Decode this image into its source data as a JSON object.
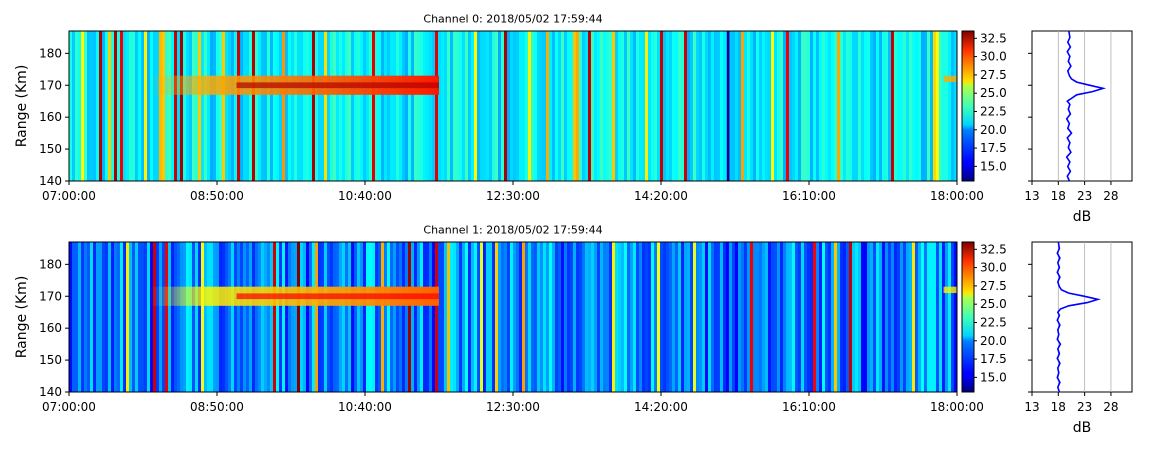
{
  "chart_data": [
    {
      "type": "heatmap",
      "title": "Channel 0: 2018/05/02 17:59:44",
      "ylabel": "Range (Km)",
      "xlabel": "",
      "x_ticks": [
        "07:00:00",
        "08:50:00",
        "10:40:00",
        "12:30:00",
        "14:20:00",
        "16:10:00",
        "18:00:00"
      ],
      "xlim": [
        "07:00:00",
        "18:00:00"
      ],
      "y_ticks": [
        140,
        150,
        160,
        170,
        180
      ],
      "ylim": [
        140,
        187
      ],
      "colorbar_ticks": [
        "15.0",
        "17.5",
        "20.0",
        "22.5",
        "25.0",
        "27.5",
        "30.0",
        "32.5"
      ],
      "colorbar_range": [
        13,
        33.5
      ],
      "colormap": "jet",
      "background_level": 20.5,
      "echo_layer": {
        "range_km": [
          167,
          173
        ],
        "time_start": "08:00:00",
        "time_end": "11:35:00",
        "level_db": 27.5
      },
      "dark_streak_time": "15:09:00",
      "profile": {
        "xlabel": "dB",
        "x_ticks": [
          13,
          18,
          23,
          28
        ],
        "xlim": [
          13,
          32
        ],
        "ylim": [
          140,
          187
        ],
        "line_color": "#0000ff",
        "points": [
          [
            20.1,
            140
          ],
          [
            19.7,
            141.5
          ],
          [
            20.3,
            143
          ],
          [
            19.8,
            144.5
          ],
          [
            20.2,
            146
          ],
          [
            19.6,
            147.5
          ],
          [
            20.4,
            149
          ],
          [
            19.9,
            150.5
          ],
          [
            20.2,
            152
          ],
          [
            19.7,
            153.5
          ],
          [
            20.5,
            155
          ],
          [
            19.8,
            156.5
          ],
          [
            20.1,
            158
          ],
          [
            19.6,
            159.5
          ],
          [
            20.3,
            161
          ],
          [
            19.9,
            162.5
          ],
          [
            20.2,
            164
          ],
          [
            19.7,
            165
          ],
          [
            20.6,
            166
          ],
          [
            21.5,
            167
          ],
          [
            24.5,
            168
          ],
          [
            26.5,
            169
          ],
          [
            24,
            170
          ],
          [
            21.5,
            171
          ],
          [
            20.5,
            172
          ],
          [
            20.1,
            173
          ],
          [
            19.8,
            174.5
          ],
          [
            20.4,
            176
          ],
          [
            19.9,
            177.5
          ],
          [
            20.2,
            179
          ],
          [
            19.7,
            180.5
          ],
          [
            20.3,
            182
          ],
          [
            19.8,
            183.5
          ],
          [
            20.2,
            185
          ],
          [
            20,
            187
          ]
        ]
      }
    },
    {
      "type": "heatmap",
      "title": "Channel 1: 2018/05/02 17:59:44",
      "ylabel": "Range (Km)",
      "xlabel": "",
      "x_ticks": [
        "07:00:00",
        "08:50:00",
        "10:40:00",
        "12:30:00",
        "14:20:00",
        "16:10:00",
        "18:00:00"
      ],
      "xlim": [
        "07:00:00",
        "18:00:00"
      ],
      "y_ticks": [
        140,
        150,
        160,
        170,
        180
      ],
      "ylim": [
        140,
        187
      ],
      "colorbar_ticks": [
        "15.0",
        "17.5",
        "20.0",
        "22.5",
        "25.0",
        "27.5",
        "30.0",
        "32.5"
      ],
      "colorbar_range": [
        13,
        33.5
      ],
      "colormap": "jet",
      "background_level": 18.5,
      "echo_layer": {
        "range_km": [
          167,
          173
        ],
        "time_start": "08:00:00",
        "time_end": "11:35:00",
        "level_db": 26
      },
      "dark_streak_time": "",
      "profile": {
        "xlabel": "dB",
        "x_ticks": [
          13,
          18,
          23,
          28
        ],
        "xlim": [
          13,
          32
        ],
        "ylim": [
          140,
          187
        ],
        "line_color": "#0000ff",
        "points": [
          [
            18.2,
            140
          ],
          [
            17.9,
            141.5
          ],
          [
            18.3,
            143
          ],
          [
            17.8,
            144.5
          ],
          [
            18.1,
            146
          ],
          [
            17.9,
            147.5
          ],
          [
            18.3,
            149
          ],
          [
            17.8,
            150.5
          ],
          [
            18.2,
            152
          ],
          [
            17.9,
            153.5
          ],
          [
            18.4,
            155
          ],
          [
            17.8,
            156.5
          ],
          [
            18.1,
            158
          ],
          [
            17.9,
            159.5
          ],
          [
            18.3,
            161
          ],
          [
            17.8,
            162.5
          ],
          [
            18.2,
            164
          ],
          [
            17.9,
            165
          ],
          [
            18.4,
            166
          ],
          [
            20,
            167
          ],
          [
            23.5,
            168
          ],
          [
            25.5,
            169
          ],
          [
            23,
            170
          ],
          [
            20,
            171
          ],
          [
            18.6,
            172
          ],
          [
            18.2,
            173
          ],
          [
            17.9,
            174.5
          ],
          [
            18.3,
            176
          ],
          [
            17.8,
            177.5
          ],
          [
            18.2,
            179
          ],
          [
            17.9,
            180.5
          ],
          [
            18.3,
            182
          ],
          [
            17.8,
            183.5
          ],
          [
            18.2,
            185
          ],
          [
            18,
            187
          ]
        ]
      }
    }
  ]
}
